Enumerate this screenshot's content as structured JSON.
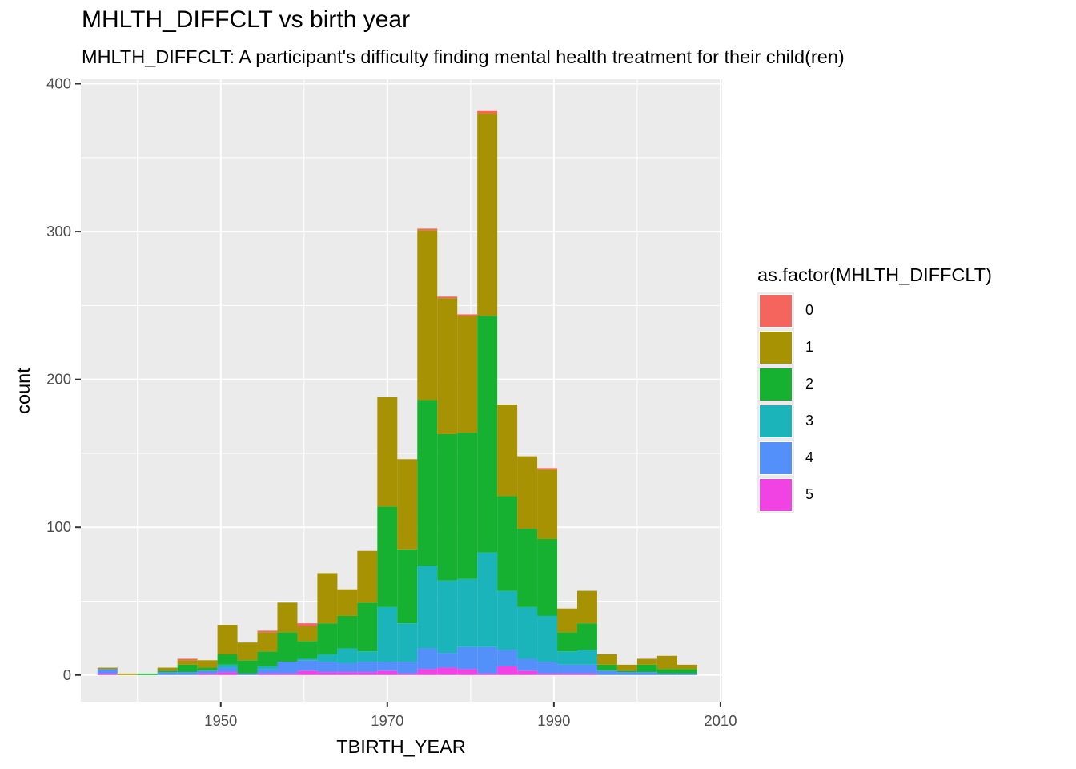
{
  "chart_data": {
    "type": "bar",
    "title": "MHLTH_DIFFCLT vs birth year",
    "subtitle": "MHLTH_DIFFCLT: A participant's difficulty finding mental health treatment for their child(ren)",
    "xlabel": "TBIRTH_YEAR",
    "ylabel": "count",
    "legend_title": "as.factor(MHLTH_DIFFCLT)",
    "legend_position": "right",
    "grid": true,
    "xlim": [
      1933.2,
      2010.2
    ],
    "ylim": [
      -18,
      403
    ],
    "x_ticks": [
      1950,
      1970,
      1990,
      2010
    ],
    "y_ticks": [
      0,
      100,
      200,
      300,
      400
    ],
    "bin_width": 2.4,
    "bin_centers": [
      1936.4,
      1938.8,
      1941.2,
      1943.6,
      1946.0,
      1948.4,
      1950.8,
      1953.2,
      1955.6,
      1958.0,
      1960.4,
      1962.8,
      1965.2,
      1967.6,
      1970.0,
      1972.4,
      1974.8,
      1977.2,
      1979.6,
      1982.0,
      1984.4,
      1986.8,
      1989.2,
      1991.6,
      1994.0,
      1996.4,
      1998.8,
      2001.2,
      2003.6,
      2006.0
    ],
    "series": [
      {
        "name": "5",
        "color": "#F142E3",
        "values": [
          1,
          0,
          0,
          0,
          0,
          1,
          2,
          0,
          1,
          1,
          3,
          2,
          2,
          2,
          3,
          1,
          4,
          5,
          4,
          1,
          6,
          3,
          1,
          1,
          1,
          0,
          0,
          0,
          0,
          0
        ]
      },
      {
        "name": "4",
        "color": "#5390FA",
        "values": [
          3,
          0,
          0,
          2,
          2,
          2,
          3,
          1,
          3,
          8,
          7,
          7,
          6,
          7,
          6,
          8,
          14,
          10,
          15,
          18,
          11,
          8,
          8,
          6,
          6,
          3,
          2,
          2,
          1,
          1
        ]
      },
      {
        "name": "3",
        "color": "#1BB4BB",
        "values": [
          0,
          0,
          0,
          0,
          0,
          0,
          2,
          0,
          2,
          0,
          1,
          5,
          10,
          7,
          37,
          26,
          56,
          49,
          46,
          64,
          40,
          35,
          31,
          9,
          10,
          0,
          0,
          0,
          0,
          0
        ]
      },
      {
        "name": "2",
        "color": "#17B132",
        "values": [
          0,
          0,
          1,
          1,
          5,
          2,
          7,
          9,
          10,
          20,
          12,
          21,
          22,
          33,
          68,
          50,
          112,
          99,
          99,
          160,
          64,
          53,
          52,
          13,
          18,
          4,
          1,
          5,
          3,
          3
        ]
      },
      {
        "name": "1",
        "color": "#A79203",
        "values": [
          1,
          1,
          0,
          2,
          3,
          5,
          20,
          12,
          13,
          20,
          10,
          34,
          18,
          35,
          74,
          61,
          115,
          92,
          79,
          137,
          62,
          49,
          47,
          16,
          22,
          7,
          4,
          4,
          9,
          3
        ]
      },
      {
        "name": "0",
        "color": "#F6645E",
        "values": [
          0,
          0,
          0,
          0,
          1,
          0,
          0,
          0,
          1,
          0,
          2,
          0,
          0,
          0,
          0,
          0,
          1,
          1,
          1,
          2,
          0,
          0,
          1,
          0,
          0,
          0,
          0,
          0,
          0,
          0
        ]
      }
    ]
  },
  "legend": {
    "items": [
      {
        "label": "0",
        "color": "#F6645E"
      },
      {
        "label": "1",
        "color": "#A79203"
      },
      {
        "label": "2",
        "color": "#17B132"
      },
      {
        "label": "3",
        "color": "#1BB4BB"
      },
      {
        "label": "4",
        "color": "#5390FA"
      },
      {
        "label": "5",
        "color": "#F142E3"
      }
    ]
  }
}
